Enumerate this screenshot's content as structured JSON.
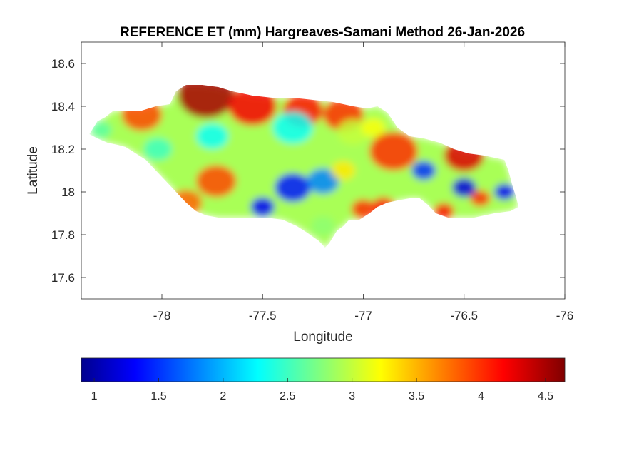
{
  "chart_data": {
    "type": "heatmap",
    "title": "REFERENCE ET (mm) Hargreaves-Samani Method  26-Jan-2026",
    "xlabel": "Longitude",
    "ylabel": "Latitude",
    "xlim": [
      -78.4,
      -76
    ],
    "ylim": [
      17.5,
      18.7
    ],
    "xticks": [
      -78,
      -77.5,
      -77,
      -76.5,
      -76
    ],
    "xtick_labels": [
      "-78",
      "-77.5",
      "-77",
      "-76.5",
      "-76"
    ],
    "yticks": [
      17.6,
      17.8,
      18,
      18.2,
      18.4,
      18.6
    ],
    "ytick_labels": [
      "17.6",
      "17.8",
      "18",
      "18.2",
      "18.4",
      "18.6"
    ],
    "colorbar": {
      "colormap": "jet",
      "range": [
        0.9,
        4.65
      ],
      "ticks": [
        1,
        1.5,
        2,
        2.5,
        3,
        3.5,
        4,
        4.5
      ],
      "tick_labels": [
        "1",
        "1.5",
        "2",
        "2.5",
        "3",
        "3.5",
        "4",
        "4.5"
      ],
      "placement": "bottom"
    },
    "region_outline": [
      [
        -78.36,
        18.27
      ],
      [
        -78.32,
        18.33
      ],
      [
        -78.28,
        18.35
      ],
      [
        -78.24,
        18.38
      ],
      [
        -78.18,
        18.38
      ],
      [
        -78.1,
        18.38
      ],
      [
        -78.03,
        18.4
      ],
      [
        -77.96,
        18.41
      ],
      [
        -77.93,
        18.47
      ],
      [
        -77.88,
        18.5
      ],
      [
        -77.8,
        18.5
      ],
      [
        -77.72,
        18.49
      ],
      [
        -77.65,
        18.47
      ],
      [
        -77.55,
        18.45
      ],
      [
        -77.45,
        18.44
      ],
      [
        -77.35,
        18.44
      ],
      [
        -77.25,
        18.43
      ],
      [
        -77.15,
        18.42
      ],
      [
        -77.05,
        18.4
      ],
      [
        -76.98,
        18.39
      ],
      [
        -76.93,
        18.4
      ],
      [
        -76.88,
        18.37
      ],
      [
        -76.83,
        18.3
      ],
      [
        -76.77,
        18.26
      ],
      [
        -76.7,
        18.25
      ],
      [
        -76.62,
        18.23
      ],
      [
        -76.55,
        18.2
      ],
      [
        -76.48,
        18.18
      ],
      [
        -76.4,
        18.17
      ],
      [
        -76.35,
        18.16
      ],
      [
        -76.3,
        18.15
      ],
      [
        -76.28,
        18.1
      ],
      [
        -76.26,
        18.03
      ],
      [
        -76.24,
        17.97
      ],
      [
        -76.23,
        17.93
      ],
      [
        -76.27,
        17.91
      ],
      [
        -76.35,
        17.9
      ],
      [
        -76.45,
        17.88
      ],
      [
        -76.52,
        17.88
      ],
      [
        -76.58,
        17.88
      ],
      [
        -76.64,
        17.9
      ],
      [
        -76.68,
        17.94
      ],
      [
        -76.72,
        17.97
      ],
      [
        -76.77,
        17.97
      ],
      [
        -76.83,
        17.96
      ],
      [
        -76.88,
        17.95
      ],
      [
        -76.93,
        17.93
      ],
      [
        -76.97,
        17.9
      ],
      [
        -77.02,
        17.87
      ],
      [
        -77.07,
        17.87
      ],
      [
        -77.1,
        17.84
      ],
      [
        -77.13,
        17.82
      ],
      [
        -77.15,
        17.79
      ],
      [
        -77.17,
        17.76
      ],
      [
        -77.19,
        17.74
      ],
      [
        -77.22,
        17.77
      ],
      [
        -77.25,
        17.79
      ],
      [
        -77.28,
        17.81
      ],
      [
        -77.33,
        17.84
      ],
      [
        -77.4,
        17.87
      ],
      [
        -77.48,
        17.88
      ],
      [
        -77.55,
        17.88
      ],
      [
        -77.63,
        17.88
      ],
      [
        -77.72,
        17.88
      ],
      [
        -77.78,
        17.89
      ],
      [
        -77.83,
        17.91
      ],
      [
        -77.88,
        17.95
      ],
      [
        -77.93,
        18.0
      ],
      [
        -77.98,
        18.05
      ],
      [
        -78.03,
        18.1
      ],
      [
        -78.08,
        18.15
      ],
      [
        -78.13,
        18.18
      ],
      [
        -78.18,
        18.21
      ],
      [
        -78.22,
        18.22
      ],
      [
        -78.27,
        18.23
      ],
      [
        -78.32,
        18.25
      ],
      [
        -78.36,
        18.27
      ]
    ],
    "features": [
      {
        "lon": -77.78,
        "lat": 18.45,
        "value": 4.5,
        "radius": 0.14
      },
      {
        "lon": -77.55,
        "lat": 18.4,
        "value": 4.2,
        "radius": 0.12
      },
      {
        "lon": -77.3,
        "lat": 18.38,
        "value": 4.1,
        "radius": 0.1
      },
      {
        "lon": -77.1,
        "lat": 18.36,
        "value": 4.0,
        "radius": 0.1
      },
      {
        "lon": -78.1,
        "lat": 18.36,
        "value": 3.9,
        "radius": 0.1
      },
      {
        "lon": -76.5,
        "lat": 18.17,
        "value": 4.3,
        "radius": 0.1
      },
      {
        "lon": -76.85,
        "lat": 18.19,
        "value": 4.0,
        "radius": 0.12
      },
      {
        "lon": -77.73,
        "lat": 18.05,
        "value": 3.9,
        "radius": 0.1
      },
      {
        "lon": -77.88,
        "lat": 17.95,
        "value": 3.8,
        "radius": 0.08
      },
      {
        "lon": -77.0,
        "lat": 17.92,
        "value": 4.0,
        "radius": 0.06
      },
      {
        "lon": -76.9,
        "lat": 17.93,
        "value": 4.1,
        "radius": 0.06
      },
      {
        "lon": -76.6,
        "lat": 17.91,
        "value": 4.1,
        "radius": 0.05
      },
      {
        "lon": -76.42,
        "lat": 17.97,
        "value": 4.0,
        "radius": 0.05
      },
      {
        "lon": -77.35,
        "lat": 18.02,
        "value": 1.4,
        "radius": 0.09
      },
      {
        "lon": -77.5,
        "lat": 17.93,
        "value": 1.3,
        "radius": 0.06
      },
      {
        "lon": -77.2,
        "lat": 18.05,
        "value": 1.8,
        "radius": 0.08
      },
      {
        "lon": -76.5,
        "lat": 18.02,
        "value": 1.2,
        "radius": 0.06
      },
      {
        "lon": -76.3,
        "lat": 18.0,
        "value": 1.3,
        "radius": 0.05
      },
      {
        "lon": -76.7,
        "lat": 18.1,
        "value": 1.5,
        "radius": 0.06
      },
      {
        "lon": -77.35,
        "lat": 18.3,
        "value": 2.3,
        "radius": 0.1
      },
      {
        "lon": -77.75,
        "lat": 18.26,
        "value": 2.3,
        "radius": 0.08
      },
      {
        "lon": -78.02,
        "lat": 18.2,
        "value": 2.5,
        "radius": 0.07
      },
      {
        "lon": -78.3,
        "lat": 18.29,
        "value": 2.6,
        "radius": 0.05
      },
      {
        "lon": -77.05,
        "lat": 18.28,
        "value": 3.0,
        "radius": 0.08
      },
      {
        "lon": -76.95,
        "lat": 18.3,
        "value": 3.2,
        "radius": 0.06
      },
      {
        "lon": -77.2,
        "lat": 17.84,
        "value": 2.8,
        "radius": 0.06
      },
      {
        "lon": -77.1,
        "lat": 18.1,
        "value": 3.3,
        "radius": 0.06
      }
    ]
  }
}
